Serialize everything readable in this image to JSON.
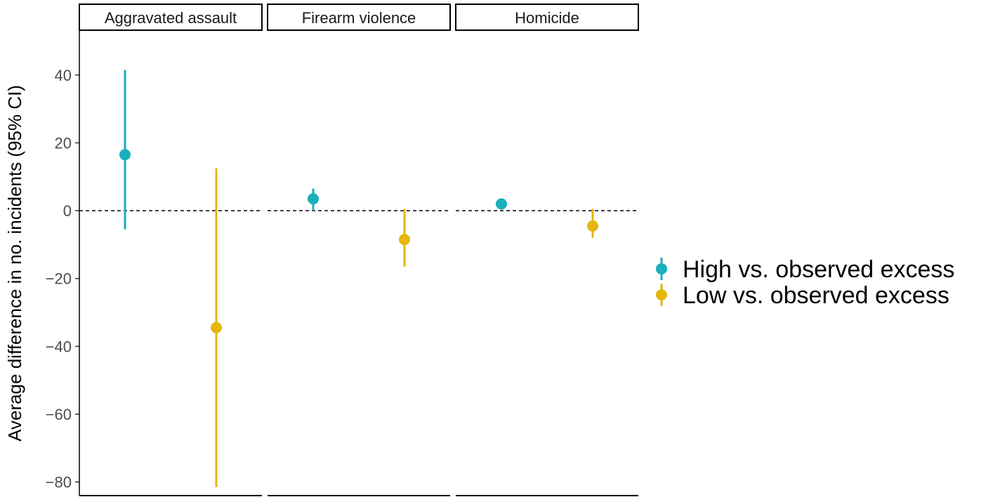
{
  "chart_data": {
    "type": "scatter",
    "subtype": "pointrange-facets",
    "ylabel": "Average difference in no. incidents (95% CI)",
    "xlabel": "",
    "ylim": [
      -84,
      53
    ],
    "yticks": [
      40,
      20,
      0,
      -20,
      -40,
      -60,
      -80
    ],
    "ytick_labels": [
      "40",
      "20",
      "0",
      "−20",
      "−40",
      "−60",
      "−80"
    ],
    "reference_line": 0,
    "grid": false,
    "legend_position": "right",
    "facets": [
      "Aggravated assault",
      "Firearm violence",
      "Homicide"
    ],
    "series": [
      {
        "name": "High vs. observed excess",
        "color": "#1AAFBC",
        "points": [
          {
            "facet": "Aggravated assault",
            "y": 16.5,
            "low": -5.5,
            "high": 41.5
          },
          {
            "facet": "Firearm violence",
            "y": 3.5,
            "low": 0.0,
            "high": 6.5
          },
          {
            "facet": "Homicide",
            "y": 2.0,
            "low": 0.5,
            "high": 3.5
          }
        ]
      },
      {
        "name": "Low vs. observed excess",
        "color": "#E5B60C",
        "points": [
          {
            "facet": "Aggravated assault",
            "y": -34.5,
            "low": -81.5,
            "high": 12.5
          },
          {
            "facet": "Firearm violence",
            "y": -8.5,
            "low": -16.5,
            "high": 0.5
          },
          {
            "facet": "Homicide",
            "y": -4.5,
            "low": -8.0,
            "high": 0.5
          }
        ]
      }
    ]
  }
}
